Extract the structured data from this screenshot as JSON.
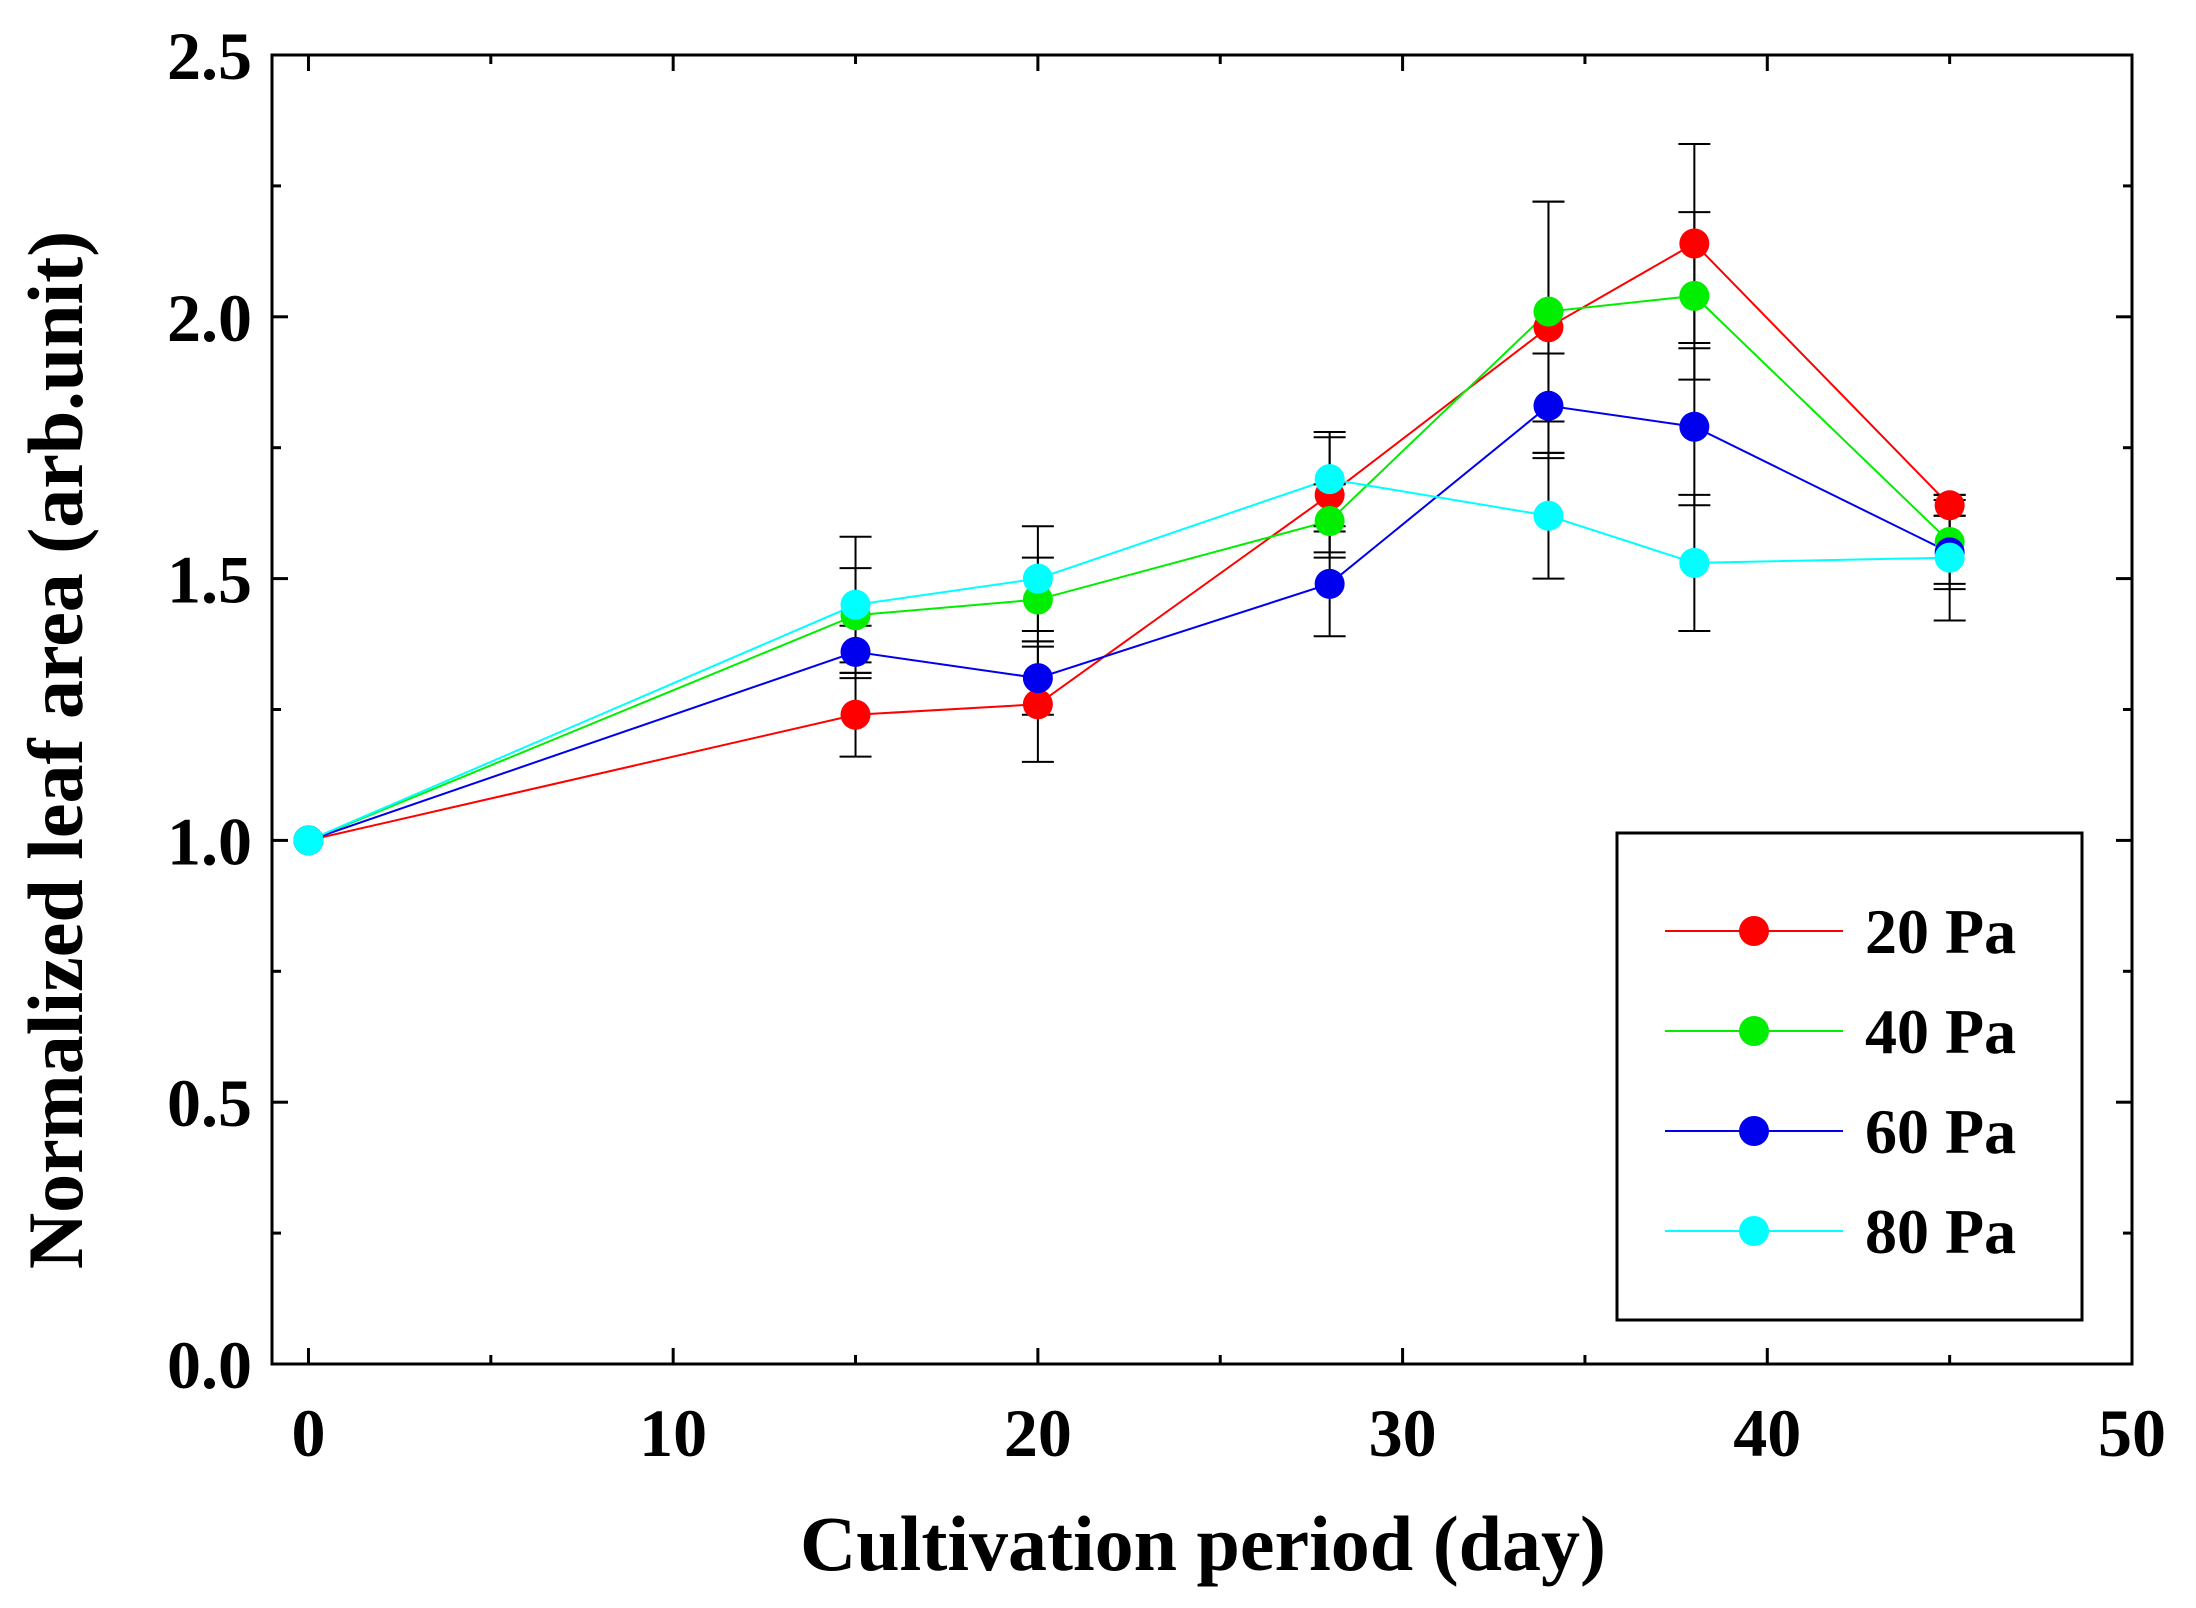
{
  "chart_data": {
    "type": "line",
    "title": "",
    "xlabel": "Cultivation period (day)",
    "ylabel": "Normalized leaf area (arb.unit)",
    "xlim": [
      -1,
      50
    ],
    "ylim": [
      0,
      2.5
    ],
    "xticks": [
      0,
      10,
      20,
      30,
      40,
      50
    ],
    "xtick_labels": [
      "0",
      "10",
      "20",
      "30",
      "40",
      "50"
    ],
    "yticks": [
      0.0,
      0.5,
      1.0,
      1.5,
      2.0,
      2.5
    ],
    "ytick_labels": [
      "0.0",
      "0.5",
      "1.0",
      "1.5",
      "2.0",
      "2.5"
    ],
    "grid": false,
    "legend_position": "bottom-right",
    "x": [
      0,
      15,
      20,
      28,
      34,
      38,
      45
    ],
    "series": [
      {
        "name": "20 Pa",
        "color": "#ff0000",
        "values": [
          1.0,
          1.24,
          1.26,
          1.66,
          1.98,
          2.14,
          1.64
        ],
        "errors": [
          0,
          0.08,
          0.11,
          0.11,
          0.24,
          0.19,
          0.02
        ]
      },
      {
        "name": "40 Pa",
        "color": "#00ee00",
        "values": [
          1.0,
          1.43,
          1.46,
          1.61,
          2.01,
          2.04,
          1.57
        ],
        "errors": [
          0,
          0.09,
          0.08,
          0.07,
          0.21,
          0.16,
          0.08
        ]
      },
      {
        "name": "60 Pa",
        "color": "#0000ee",
        "values": [
          1.0,
          1.36,
          1.31,
          1.49,
          1.83,
          1.79,
          1.55
        ],
        "errors": [
          0,
          0.05,
          0.07,
          0.1,
          0.1,
          0.15,
          0.07
        ]
      },
      {
        "name": "80 Pa",
        "color": "#00ffff",
        "values": [
          1.0,
          1.45,
          1.5,
          1.69,
          1.62,
          1.53,
          1.54
        ],
        "errors": [
          0,
          0.13,
          0.1,
          0.09,
          0.12,
          0.13,
          0.12
        ]
      }
    ]
  }
}
